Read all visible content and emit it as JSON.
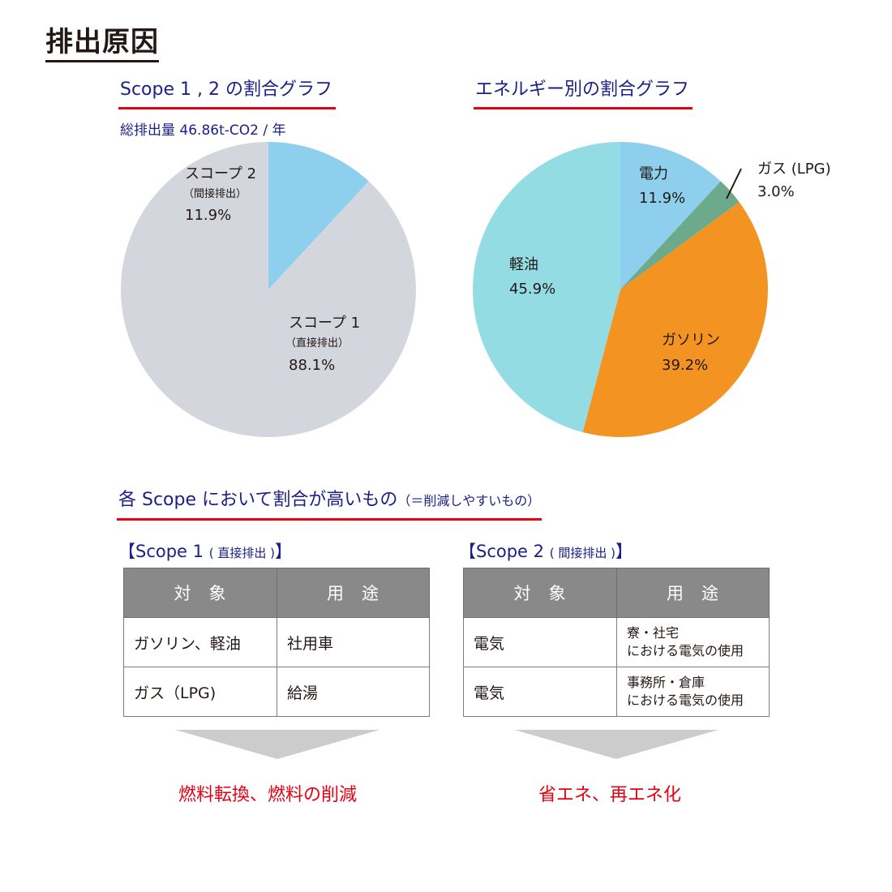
{
  "page_title": "排出原因",
  "chart_data": [
    {
      "type": "pie",
      "title": "Scope 1 , 2 の割合グラフ",
      "subtitle": "総排出量 46.86t-CO2 / 年",
      "slices": [
        {
          "label": "スコープ 1",
          "sublabel": "（直接排出）",
          "value_label": "88.1%",
          "value": 88.1,
          "color": "#d3d7dd"
        },
        {
          "label": "スコープ 2",
          "sublabel": "（間接排出）",
          "value_label": "11.9%",
          "value": 11.9,
          "color": "#8ecfee"
        }
      ]
    },
    {
      "type": "pie",
      "title": "エネルギー別の割合グラフ",
      "slices": [
        {
          "label": "電力",
          "value_label": "11.9%",
          "value": 11.9,
          "color": "#8ecfee"
        },
        {
          "label": "ガス (LPG)",
          "value_label": "3.0%",
          "value": 3.0,
          "color": "#6daa8c"
        },
        {
          "label": "ガソリン",
          "value_label": "39.2%",
          "value": 39.2,
          "color": "#f39322"
        },
        {
          "label": "軽油",
          "value_label": "45.9%",
          "value": 45.9,
          "color": "#94dce3"
        }
      ]
    }
  ],
  "section": {
    "title": "各 Scope において割合が高いもの",
    "title_note": "（＝削減しやすいもの）"
  },
  "scope1_table": {
    "heading_main": "【Scope 1",
    "heading_note": "( 直接排出 )",
    "heading_end": "】",
    "headers": [
      "対象",
      "用途"
    ],
    "rows": [
      {
        "target": "ガソリン、軽油",
        "use": "社用車"
      },
      {
        "target": "ガス（LPG)",
        "use": "給湯"
      }
    ],
    "result": "燃料転換、燃料の削減"
  },
  "scope2_table": {
    "heading_main": "【Scope 2",
    "heading_note": "( 間接排出 )",
    "heading_end": "】",
    "headers": [
      "対象",
      "用途"
    ],
    "rows": [
      {
        "target": "電気",
        "use_line1": "寮・社宅",
        "use_line2": "における電気の使用"
      },
      {
        "target": "電気",
        "use_line1": "事務所・倉庫",
        "use_line2": "における電気の使用"
      }
    ],
    "result": "省エネ、再エネ化"
  },
  "colors": {
    "accent_title": "#1d2088",
    "underline": "#e60012",
    "result_text": "#e60012",
    "table_header_bg": "#898989",
    "arrow": "#cccccc"
  }
}
